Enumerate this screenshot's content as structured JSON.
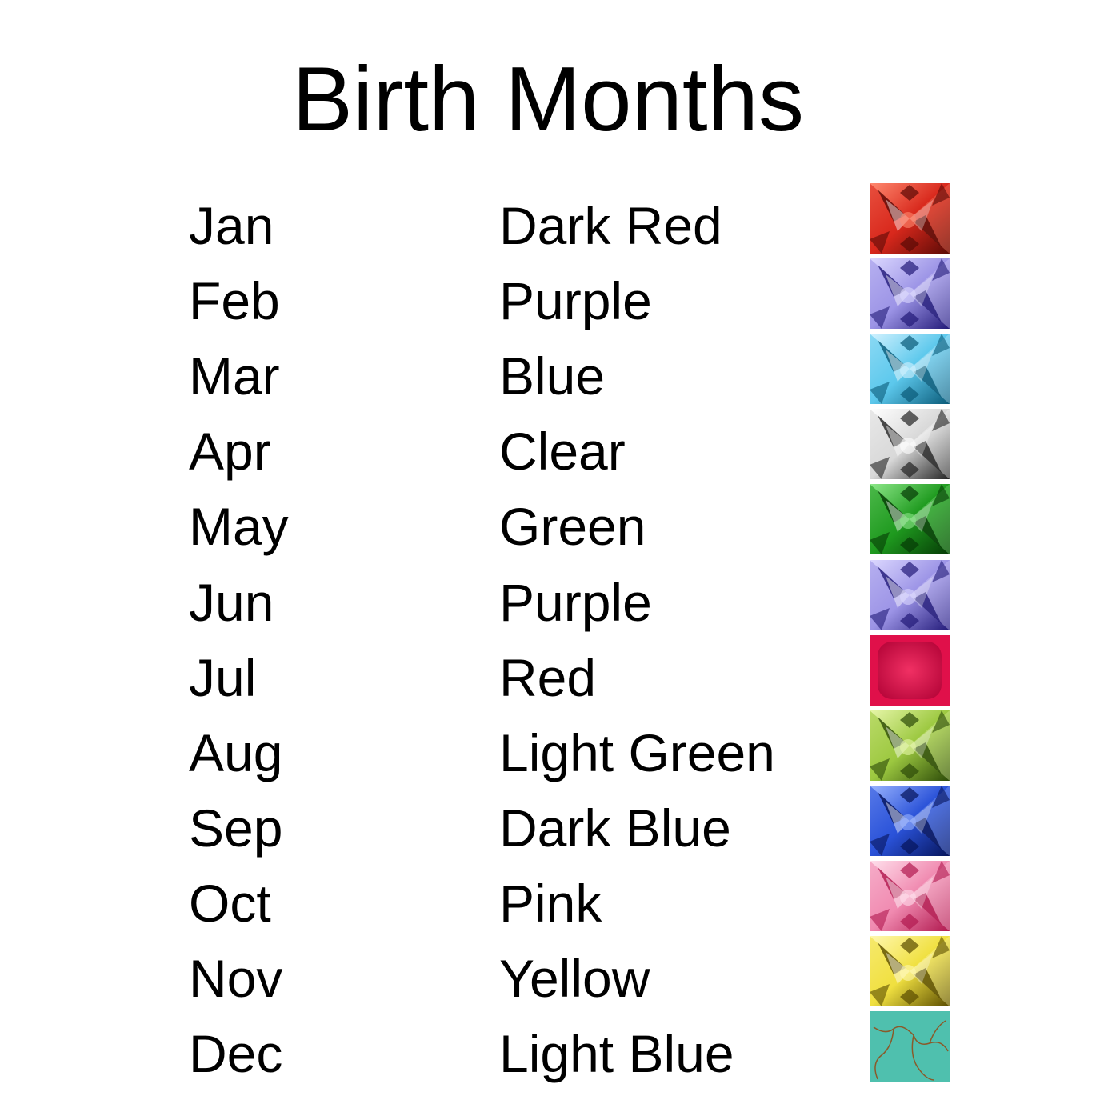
{
  "title": "Birth Months",
  "rows": [
    {
      "month": "Jan",
      "color": "Dark Red",
      "gem": {
        "base": "#d8281c",
        "light": "#ff8a70",
        "dark": "#5a0a06",
        "style": "faceted"
      }
    },
    {
      "month": "Feb",
      "color": "Purple",
      "gem": {
        "base": "#9c94e6",
        "light": "#dcd8ff",
        "dark": "#221a78",
        "style": "faceted"
      }
    },
    {
      "month": "Mar",
      "color": "Blue",
      "gem": {
        "base": "#5cc8ec",
        "light": "#d2f2ff",
        "dark": "#0a5a78",
        "style": "faceted"
      }
    },
    {
      "month": "Apr",
      "color": "Clear",
      "gem": {
        "base": "#d8d8d8",
        "light": "#ffffff",
        "dark": "#222222",
        "style": "faceted"
      }
    },
    {
      "month": "May",
      "color": "Green",
      "gem": {
        "base": "#1f9a1f",
        "light": "#8ee88a",
        "dark": "#053a05",
        "style": "faceted"
      }
    },
    {
      "month": "Jun",
      "color": "Purple",
      "gem": {
        "base": "#9c94e6",
        "light": "#dcd8ff",
        "dark": "#221a78",
        "style": "faceted"
      }
    },
    {
      "month": "Jul",
      "color": "Red",
      "gem": {
        "base": "#e0104a",
        "light": "#f5386a",
        "dark": "#b00638",
        "style": "cabochon"
      }
    },
    {
      "month": "Aug",
      "color": "Light Green",
      "gem": {
        "base": "#9cc840",
        "light": "#e6f6a8",
        "dark": "#2c4a08",
        "style": "faceted"
      }
    },
    {
      "month": "Sep",
      "color": "Dark Blue",
      "gem": {
        "base": "#2a52d8",
        "light": "#9ab4ff",
        "dark": "#06145a",
        "style": "faceted"
      }
    },
    {
      "month": "Oct",
      "color": "Pink",
      "gem": {
        "base": "#f08ab0",
        "light": "#ffe0ec",
        "dark": "#b0184e",
        "style": "faceted"
      }
    },
    {
      "month": "Nov",
      "color": "Yellow",
      "gem": {
        "base": "#f0e040",
        "light": "#fff8b0",
        "dark": "#5a4c00",
        "style": "faceted"
      }
    },
    {
      "month": "Dec",
      "color": "Light Blue",
      "gem": {
        "base": "#4fc0ae",
        "light": "#8ad8ca",
        "dark": "#8a5a2a",
        "style": "turquoise"
      }
    }
  ]
}
